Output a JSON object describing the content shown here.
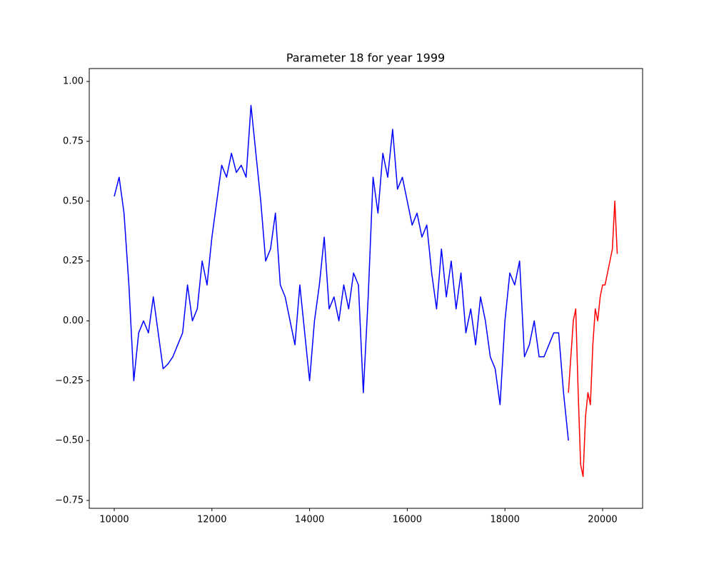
{
  "chart_data": {
    "type": "line",
    "title": "Parameter 18 for year 1999",
    "xlim": [
      9488,
      20819
    ],
    "ylim": [
      -0.783,
      1.054
    ],
    "xticks": [
      10000,
      12000,
      14000,
      16000,
      18000,
      20000
    ],
    "yticks": [
      {
        "value": -0.75,
        "label": "−0.75"
      },
      {
        "value": -0.5,
        "label": "−0.50"
      },
      {
        "value": -0.25,
        "label": "−0.25"
      },
      {
        "value": 0,
        "label": "0.00"
      },
      {
        "value": 0.25,
        "label": "0.25"
      },
      {
        "value": 0.5,
        "label": "0.50"
      },
      {
        "value": 0.75,
        "label": "0.75"
      },
      {
        "value": 1,
        "label": "1.00"
      }
    ],
    "grid": false,
    "series": [
      {
        "color": "#0000ff",
        "x": [
          10000,
          10100,
          10200,
          10300,
          10400,
          10500,
          10600,
          10700,
          10800,
          10900,
          11000,
          11100,
          11200,
          11300,
          11400,
          11500,
          11600,
          11700,
          11800,
          11900,
          12000,
          12100,
          12200,
          12300,
          12400,
          12500,
          12600,
          12700,
          12800,
          12900,
          13000,
          13100,
          13200,
          13300,
          13400,
          13500,
          13600,
          13700,
          13800,
          13900,
          14000,
          14100,
          14200,
          14300,
          14400,
          14500,
          14600,
          14700,
          14800,
          14900,
          15000,
          15100,
          15200,
          15300,
          15400,
          15500,
          15600,
          15700,
          15800,
          15900,
          16000,
          16100,
          16200,
          16300,
          16400,
          16500,
          16600,
          16700,
          16800,
          16900,
          17000,
          17100,
          17200,
          17300,
          17400,
          17500,
          17600,
          17700,
          17800,
          17900,
          18000,
          18100,
          18200,
          18300,
          18400,
          18500,
          18600,
          18700,
          18800,
          18900,
          19000,
          19100,
          19200,
          19300
        ],
        "values": [
          0.52,
          0.6,
          0.45,
          0.15,
          -0.25,
          -0.05,
          0.0,
          -0.05,
          0.1,
          -0.05,
          -0.2,
          -0.18,
          -0.15,
          -0.1,
          -0.05,
          0.15,
          0.0,
          0.05,
          0.25,
          0.15,
          0.35,
          0.5,
          0.65,
          0.6,
          0.7,
          0.62,
          0.65,
          0.6,
          0.9,
          0.7,
          0.5,
          0.25,
          0.3,
          0.45,
          0.15,
          0.1,
          0.0,
          -0.1,
          0.15,
          -0.05,
          -0.25,
          0.0,
          0.15,
          0.35,
          0.05,
          0.1,
          0.0,
          0.15,
          0.05,
          0.2,
          0.15,
          -0.3,
          0.1,
          0.6,
          0.45,
          0.7,
          0.6,
          0.8,
          0.55,
          0.6,
          0.5,
          0.4,
          0.45,
          0.35,
          0.4,
          0.2,
          0.05,
          0.3,
          0.1,
          0.25,
          0.05,
          0.2,
          -0.05,
          0.05,
          -0.1,
          0.1,
          0.0,
          -0.15,
          -0.2,
          -0.35,
          0.0,
          0.2,
          0.15,
          0.25,
          -0.15,
          -0.1,
          0.0,
          -0.15,
          -0.15,
          -0.1,
          -0.05,
          -0.05,
          -0.3,
          -0.5
        ]
      },
      {
        "color": "#ff0000",
        "x": [
          19300,
          19350,
          19400,
          19450,
          19500,
          19550,
          19600,
          19650,
          19700,
          19750,
          19800,
          19850,
          19900,
          19950,
          20000,
          20050,
          20100,
          20150,
          20200,
          20250,
          20300
        ],
        "values": [
          -0.3,
          -0.15,
          0.0,
          0.05,
          -0.3,
          -0.6,
          -0.65,
          -0.4,
          -0.3,
          -0.35,
          -0.1,
          0.05,
          0.0,
          0.1,
          0.15,
          0.15,
          0.2,
          0.25,
          0.3,
          0.5,
          0.28
        ]
      }
    ]
  }
}
